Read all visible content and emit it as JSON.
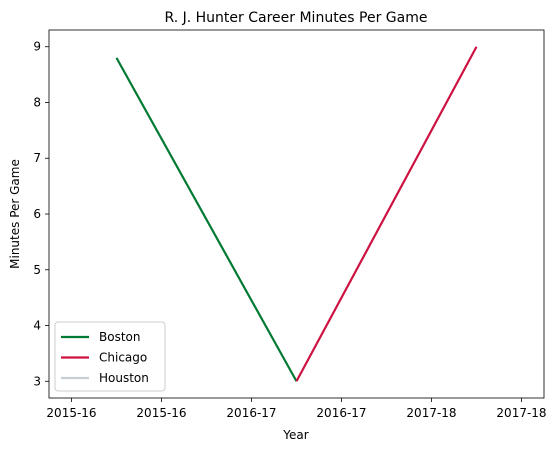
{
  "chart_data": {
    "type": "line",
    "title": "R. J. Hunter Career Minutes Per Game",
    "xlabel": "Year",
    "ylabel": "Minutes Per Game",
    "x_tick_labels": [
      "2015-16",
      "2015-16",
      "2016-17",
      "2016-17",
      "2017-18",
      "2017-18"
    ],
    "ylim": [
      2.7,
      9.3
    ],
    "y_ticks": [
      3,
      4,
      5,
      6,
      7,
      8,
      9
    ],
    "grid": false,
    "legend_position": "lower-left",
    "series": [
      {
        "name": "Boston",
        "color": "#007a33",
        "points": [
          {
            "x": "2015-16",
            "y": 8.8
          },
          {
            "x": "2016-17",
            "y": 3.0
          }
        ]
      },
      {
        "name": "Chicago",
        "color": "#ce1141",
        "points": [
          {
            "x": "2016-17",
            "y": 3.0
          },
          {
            "x": "2017-18",
            "y": 9.0
          }
        ]
      },
      {
        "name": "Houston",
        "color": "#c4ced4",
        "points": []
      }
    ]
  }
}
